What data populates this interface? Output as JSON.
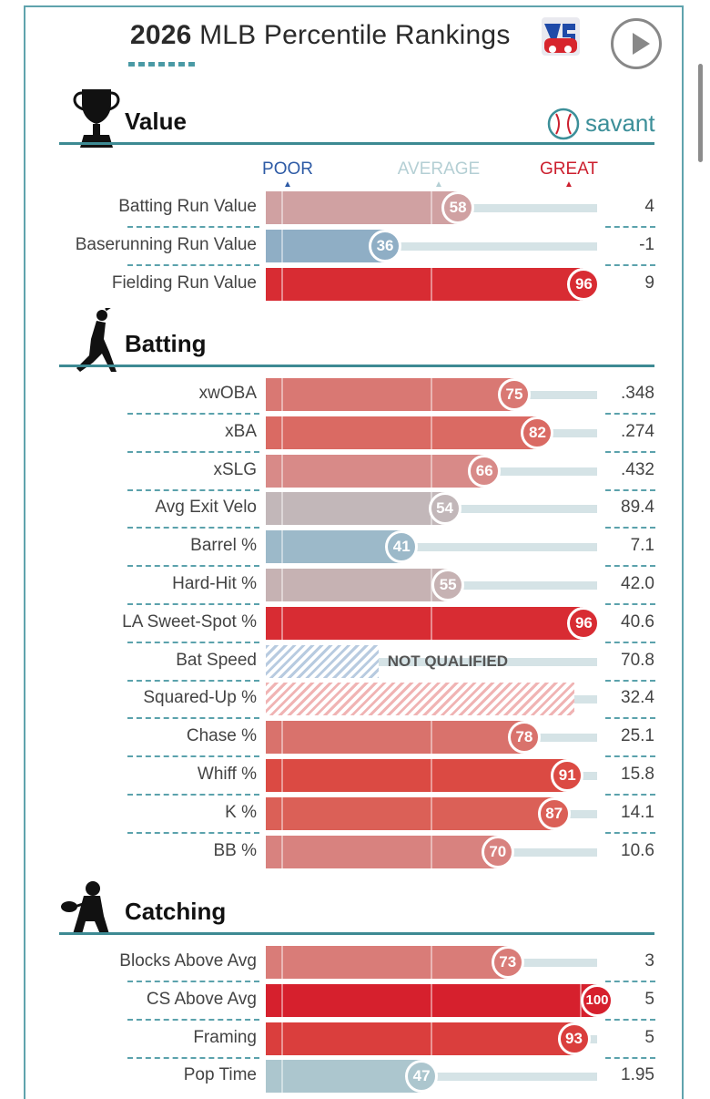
{
  "header": {
    "title_year": "2026",
    "title_rest": "MLB Percentile Rankings",
    "logo_letters": "VS",
    "savant_label": "savant"
  },
  "scale_labels": {
    "poor": "POOR",
    "average": "AVERAGE",
    "great": "GREAT"
  },
  "not_qualified_label": "NOT QUALIFIED",
  "colors": {
    "accent": "#3d8a93",
    "poor": "#2d5aa5",
    "great": "#cc1f2e",
    "track": "#d5e3e6"
  },
  "chart_data": {
    "type": "bar",
    "sections": [
      {
        "title": "Value",
        "icon": "trophy-icon",
        "metrics": [
          {
            "label": "Batting Run Value",
            "percentile": 58,
            "stat": "4"
          },
          {
            "label": "Baserunning Run Value",
            "percentile": 36,
            "stat": "-1"
          },
          {
            "label": "Fielding Run Value",
            "percentile": 96,
            "stat": "9"
          }
        ]
      },
      {
        "title": "Batting",
        "icon": "batter-icon",
        "metrics": [
          {
            "label": "xwOBA",
            "percentile": 75,
            "stat": ".348"
          },
          {
            "label": "xBA",
            "percentile": 82,
            "stat": ".274"
          },
          {
            "label": "xSLG",
            "percentile": 66,
            "stat": ".432"
          },
          {
            "label": "Avg Exit Velo",
            "percentile": 54,
            "stat": "89.4"
          },
          {
            "label": "Barrel %",
            "percentile": 41,
            "stat": "7.1"
          },
          {
            "label": "Hard-Hit %",
            "percentile": 55,
            "stat": "42.0"
          },
          {
            "label": "LA Sweet-Spot %",
            "percentile": 96,
            "stat": "40.6"
          },
          {
            "label": "Bat Speed",
            "percentile": 34,
            "stat": "70.8",
            "qualified": false,
            "show_nq_label": true
          },
          {
            "label": "Squared-Up %",
            "percentile": 93,
            "stat": "32.4",
            "qualified": false,
            "show_nq_label": false
          },
          {
            "label": "Chase %",
            "percentile": 78,
            "stat": "25.1"
          },
          {
            "label": "Whiff %",
            "percentile": 91,
            "stat": "15.8"
          },
          {
            "label": "K %",
            "percentile": 87,
            "stat": "14.1"
          },
          {
            "label": "BB %",
            "percentile": 70,
            "stat": "10.6"
          }
        ]
      },
      {
        "title": "Catching",
        "icon": "catcher-icon",
        "metrics": [
          {
            "label": "Blocks Above Avg",
            "percentile": 73,
            "stat": "3"
          },
          {
            "label": "CS Above Avg",
            "percentile": 100,
            "stat": "5"
          },
          {
            "label": "Framing",
            "percentile": 93,
            "stat": "5"
          },
          {
            "label": "Pop Time",
            "percentile": 47,
            "stat": "1.95"
          }
        ]
      }
    ],
    "xlim": [
      0,
      100
    ],
    "reference_ticks": [
      5,
      50,
      95
    ]
  }
}
